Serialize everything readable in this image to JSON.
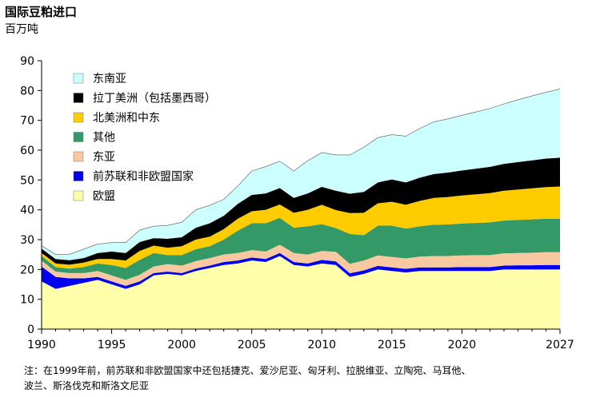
{
  "title": "国际豆粕进口",
  "unit_label": "百万吨",
  "note_lines": [
    "注：在1999年前，前苏联和非欧盟国家中还包括捷克、爱沙尼亚、匈牙利、拉脱维亚、立陶宛、马耳他、",
    "波兰、斯洛伐克和斯洛文尼亚"
  ],
  "chart_data": {
    "type": "area",
    "stacked": true,
    "x": [
      1990,
      1991,
      1992,
      1993,
      1994,
      1995,
      1996,
      1997,
      1998,
      1999,
      2000,
      2001,
      2002,
      2003,
      2004,
      2005,
      2006,
      2007,
      2008,
      2009,
      2010,
      2011,
      2012,
      2013,
      2014,
      2015,
      2016,
      2017,
      2018,
      2019,
      2020,
      2021,
      2022,
      2023,
      2024,
      2025,
      2026,
      2027
    ],
    "x_ticks": [
      1990,
      1995,
      2000,
      2005,
      2010,
      2015,
      2020,
      2027
    ],
    "y_ticks": [
      0,
      10,
      20,
      30,
      40,
      50,
      60,
      70,
      80,
      90
    ],
    "xlim": [
      1990,
      2027
    ],
    "ylim": [
      0,
      90
    ],
    "legend_position": "top-left",
    "series": [
      {
        "name": "欧盟",
        "color": "#FFFFAA",
        "values": [
          16.0,
          13.5,
          14.5,
          15.5,
          16.5,
          15.0,
          13.5,
          15.0,
          18.0,
          18.5,
          18.0,
          19.5,
          20.5,
          21.5,
          22.0,
          23.0,
          22.5,
          24.5,
          21.5,
          21.0,
          22.0,
          21.5,
          17.5,
          18.5,
          20.0,
          19.5,
          19.0,
          19.5,
          19.5,
          19.5,
          19.5,
          19.5,
          19.5,
          20.0,
          20.0,
          20.0,
          20.0,
          20.0
        ]
      },
      {
        "name": "前苏联和非欧盟国家",
        "color": "#0000EE",
        "values": [
          5.0,
          4.0,
          2.5,
          1.5,
          1.0,
          1.0,
          1.0,
          1.0,
          0.8,
          0.8,
          0.8,
          0.8,
          0.8,
          1.0,
          1.0,
          1.0,
          1.0,
          1.0,
          1.0,
          1.0,
          1.2,
          1.2,
          1.2,
          1.2,
          1.2,
          1.2,
          1.2,
          1.2,
          1.2,
          1.2,
          1.3,
          1.3,
          1.3,
          1.3,
          1.4,
          1.4,
          1.5,
          1.5
        ]
      },
      {
        "name": "东亚",
        "color": "#F8C8A0",
        "values": [
          2.0,
          1.8,
          1.8,
          1.8,
          2.0,
          2.0,
          2.0,
          2.2,
          2.2,
          2.5,
          2.5,
          2.5,
          2.5,
          2.5,
          2.5,
          2.5,
          2.5,
          2.8,
          3.0,
          3.0,
          3.0,
          3.2,
          3.2,
          3.3,
          3.5,
          3.5,
          3.5,
          3.6,
          3.8,
          3.8,
          3.9,
          4.0,
          4.0,
          4.1,
          4.1,
          4.2,
          4.3,
          4.3
        ]
      },
      {
        "name": "其他",
        "color": "#339966",
        "values": [
          1.5,
          1.5,
          1.5,
          2.0,
          2.5,
          3.5,
          4.0,
          5.0,
          4.5,
          3.0,
          3.5,
          4.0,
          4.0,
          5.0,
          7.5,
          9.0,
          9.5,
          9.0,
          8.5,
          9.5,
          9.0,
          8.0,
          10.0,
          8.5,
          10.0,
          10.5,
          10.0,
          10.2,
          10.5,
          10.6,
          10.7,
          10.8,
          11.0,
          11.0,
          11.1,
          11.2,
          11.2,
          11.2
        ]
      },
      {
        "name": "北美洲和中东",
        "color": "#FFCC00",
        "values": [
          1.0,
          1.2,
          1.3,
          1.5,
          1.5,
          2.0,
          2.5,
          3.0,
          2.5,
          2.5,
          3.0,
          3.2,
          3.2,
          3.5,
          4.0,
          4.0,
          4.5,
          4.5,
          5.0,
          5.5,
          6.5,
          6.0,
          7.0,
          7.5,
          7.5,
          8.0,
          8.0,
          8.5,
          9.0,
          9.2,
          9.4,
          9.6,
          9.8,
          10.0,
          10.2,
          10.4,
          10.6,
          10.8
        ]
      },
      {
        "name": "拉丁美洲（包括墨西哥）",
        "color": "#000000",
        "values": [
          1.5,
          1.5,
          1.5,
          1.5,
          2.0,
          2.5,
          2.5,
          3.0,
          2.5,
          3.0,
          3.0,
          4.0,
          4.5,
          4.5,
          5.0,
          5.5,
          5.5,
          5.5,
          5.0,
          5.5,
          6.0,
          6.5,
          6.5,
          7.0,
          7.0,
          7.5,
          7.5,
          7.8,
          8.0,
          8.2,
          8.4,
          8.6,
          8.8,
          9.0,
          9.2,
          9.4,
          9.6,
          9.7
        ]
      },
      {
        "name": "东南亚",
        "color": "#CCFFFF",
        "values": [
          1.0,
          1.5,
          2.0,
          3.0,
          3.0,
          3.0,
          3.5,
          4.0,
          4.0,
          4.5,
          5.0,
          6.0,
          6.0,
          5.5,
          6.0,
          8.0,
          9.0,
          9.0,
          9.0,
          11.0,
          11.5,
          12.0,
          13.0,
          15.0,
          15.0,
          15.0,
          15.5,
          16.5,
          17.5,
          18.0,
          18.5,
          19.0,
          19.6,
          20.1,
          20.9,
          21.6,
          22.2,
          23.0
        ]
      }
    ]
  }
}
